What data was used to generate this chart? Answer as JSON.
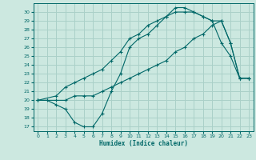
{
  "xlabel": "Humidex (Indice chaleur)",
  "bg_color": "#cce8e0",
  "grid_color": "#aad0c8",
  "line_color": "#006868",
  "xlim": [
    -0.5,
    23.5
  ],
  "ylim": [
    16.5,
    31.0
  ],
  "xticks": [
    0,
    1,
    2,
    3,
    4,
    5,
    6,
    7,
    8,
    9,
    10,
    11,
    12,
    13,
    14,
    15,
    16,
    17,
    18,
    19,
    20,
    21,
    22,
    23
  ],
  "yticks": [
    17,
    18,
    19,
    20,
    21,
    22,
    23,
    24,
    25,
    26,
    27,
    28,
    29,
    30
  ],
  "line1_x": [
    0,
    1,
    2,
    3,
    4,
    5,
    6,
    7,
    8,
    9,
    10,
    11,
    12,
    13,
    14,
    15,
    16,
    17,
    18,
    19,
    20,
    21,
    22,
    23
  ],
  "line1_y": [
    20.0,
    20.0,
    19.5,
    19.0,
    17.5,
    17.0,
    17.0,
    18.5,
    21.0,
    23.0,
    26.0,
    27.0,
    27.5,
    28.5,
    29.5,
    30.5,
    30.5,
    30.0,
    29.5,
    29.0,
    26.5,
    25.0,
    22.5,
    22.5
  ],
  "line2_x": [
    0,
    2,
    3,
    4,
    5,
    6,
    7,
    8,
    9,
    10,
    11,
    12,
    13,
    14,
    15,
    16,
    17,
    18,
    19,
    20,
    21,
    22,
    23
  ],
  "line2_y": [
    20.0,
    20.5,
    21.5,
    22.0,
    22.5,
    23.0,
    23.5,
    24.5,
    25.5,
    27.0,
    27.5,
    28.5,
    29.0,
    29.5,
    30.0,
    30.0,
    30.0,
    29.5,
    29.0,
    29.0,
    26.5,
    22.5,
    22.5
  ],
  "line3_x": [
    0,
    2,
    3,
    4,
    5,
    6,
    7,
    8,
    9,
    10,
    11,
    12,
    13,
    14,
    15,
    16,
    17,
    18,
    19,
    20,
    21,
    22,
    23
  ],
  "line3_y": [
    20.0,
    20.0,
    20.0,
    20.5,
    20.5,
    20.5,
    21.0,
    21.5,
    22.0,
    22.5,
    23.0,
    23.5,
    24.0,
    24.5,
    25.5,
    26.0,
    27.0,
    27.5,
    28.5,
    29.0,
    26.5,
    22.5,
    22.5
  ]
}
